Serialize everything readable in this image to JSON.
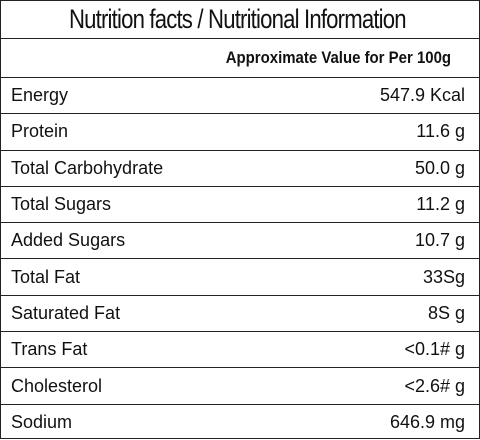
{
  "header": {
    "title": "Nutrition facts / Nutritional Information",
    "subtitle": "Approximate Value for Per 100g"
  },
  "table": {
    "rows": [
      [
        "Energy",
        "547.9 Kcal"
      ],
      [
        "Protein",
        "11.6 g"
      ],
      [
        "Total Carbohydrate",
        "50.0 g"
      ],
      [
        "Total Sugars",
        "11.2 g"
      ],
      [
        "Added Sugars",
        "10.7 g"
      ],
      [
        "Total Fat",
        "33Sg"
      ],
      [
        "Saturated Fat",
        "8S g"
      ],
      [
        "Trans Fat",
        "<0.1# g"
      ],
      [
        "Cholesterol",
        "<2.6# g"
      ],
      [
        "Sodium",
        "646.9 mg"
      ]
    ]
  }
}
